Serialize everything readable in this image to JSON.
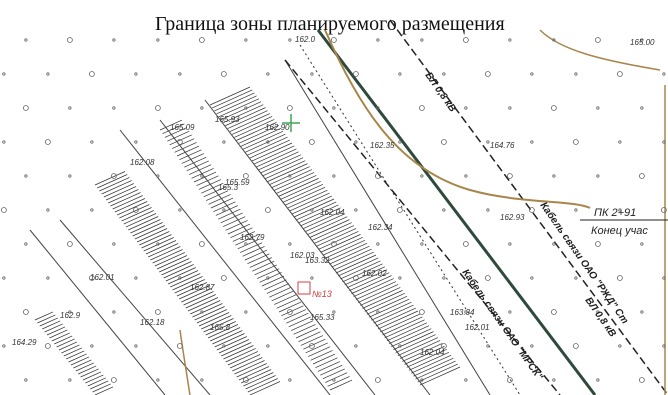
{
  "title": "Граница зоны планируемого размещения",
  "labels": {
    "pk": "ПК 2+91",
    "end": "Конец учас",
    "cable1": "Кабель связи ОАО \"РЖД\" Ст",
    "cable2": "Кабель связи ОАО \"МРСК\"",
    "voltage1": "ВЛ 0,8 кВ",
    "voltage2": "ВЛ 0,8 кВ",
    "station": "№13"
  },
  "elevations": [
    "162.0",
    "162.90",
    "165.93",
    "165.09",
    "165.3",
    "162.08",
    "165.59",
    "162.04",
    "162.03",
    "162.34",
    "162.79",
    "163.32",
    "162.02",
    "162.87",
    "165.8",
    "165.33",
    "162.01",
    "163.34",
    "162.04",
    "162.01",
    "162.93",
    "164.76",
    "162.35",
    "165.00",
    "164.29",
    "162.18",
    "162.9"
  ],
  "colors": {
    "road": "#2e4a3c",
    "contour": "#a8864a",
    "dark": "#222222",
    "cross": "#3aa856",
    "marker": "#d04040"
  },
  "icons": [
    "survey-point-cross-icon",
    "station-marker-icon"
  ]
}
